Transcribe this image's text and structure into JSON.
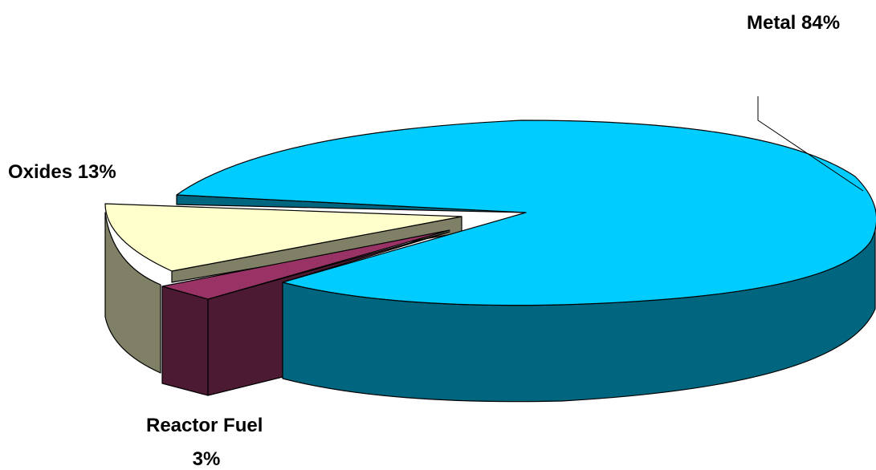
{
  "chart_data": {
    "type": "pie",
    "title": "",
    "style": "3d-exploded",
    "slices": [
      {
        "label": "Metal",
        "value": 84,
        "display": "Metal  84%",
        "color_top": "#00CCFF",
        "color_side": "#006680"
      },
      {
        "label": "Oxides",
        "value": 13,
        "display": "Oxides 13%",
        "color_top": "#FFFFCC",
        "color_side": "#808066"
      },
      {
        "label": "Reactor Fuel",
        "value": 3,
        "display_line1": "Reactor Fuel",
        "display_line2": "3%",
        "color_top": "#993366",
        "color_side": "#4D1A33"
      }
    ]
  }
}
